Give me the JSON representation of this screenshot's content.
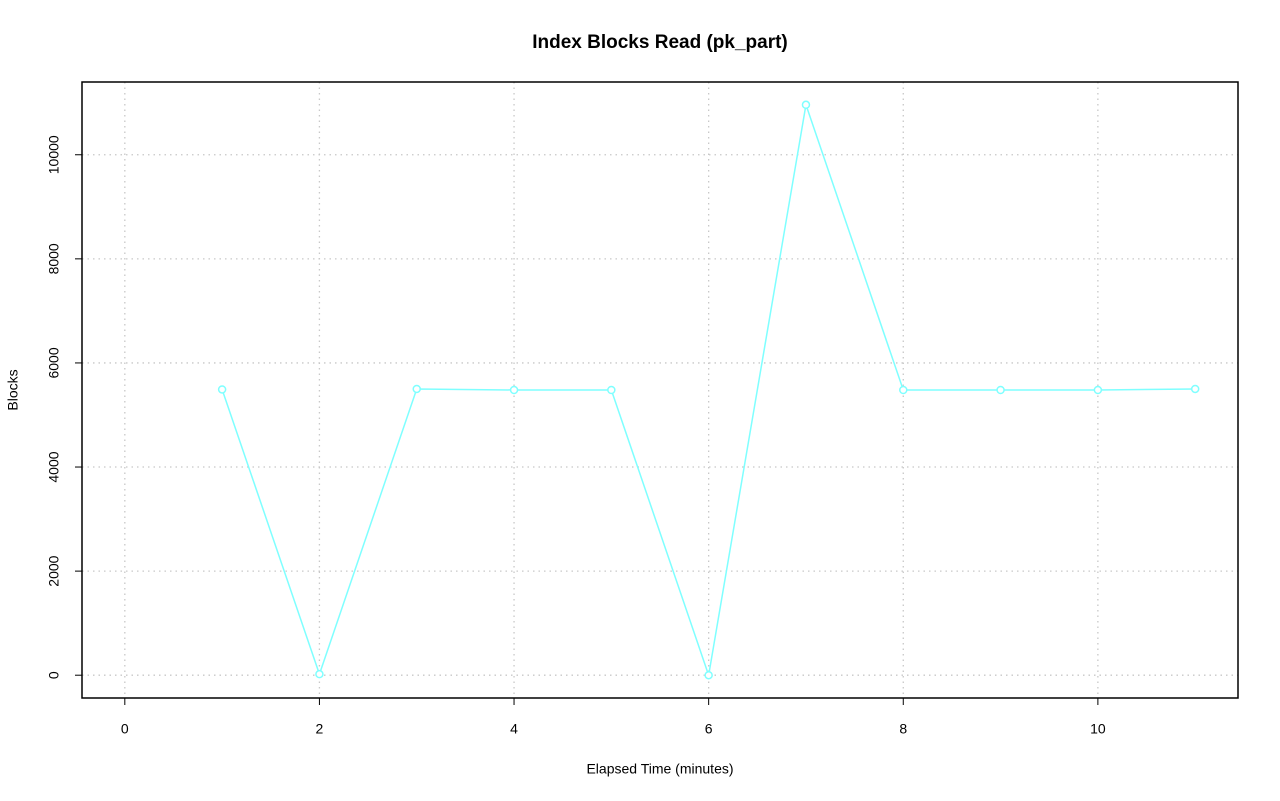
{
  "chart_data": {
    "type": "line",
    "title": "Index Blocks Read (pk_part)",
    "x_label": "Elapsed Time (minutes)",
    "y_label": "Blocks",
    "x": [
      1,
      2,
      3,
      4,
      5,
      6,
      7,
      8,
      9,
      10,
      11
    ],
    "series": [
      {
        "name": "pk_part",
        "color": "#7fffff",
        "values": [
          5490,
          20,
          5500,
          5480,
          5480,
          0,
          10960,
          5480,
          5480,
          5480,
          5500
        ]
      }
    ],
    "xlim": [
      -0.44,
      11.44
    ],
    "xticks": [
      0,
      2,
      4,
      6,
      8,
      10
    ],
    "ylim": [
      -438,
      11398
    ],
    "yticks": [
      0,
      2000,
      4000,
      6000,
      8000,
      10000
    ],
    "grid": true
  }
}
